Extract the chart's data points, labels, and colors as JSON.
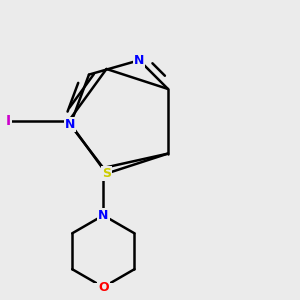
{
  "bg_color": "#ebebeb",
  "atom_colors": {
    "N": "#0000ff",
    "S": "#cccc00",
    "O": "#ff0000",
    "I": "#cc00cc"
  },
  "bond_color": "#000000",
  "bond_width": 1.8,
  "figsize": [
    3.0,
    3.0
  ],
  "dpi": 100
}
